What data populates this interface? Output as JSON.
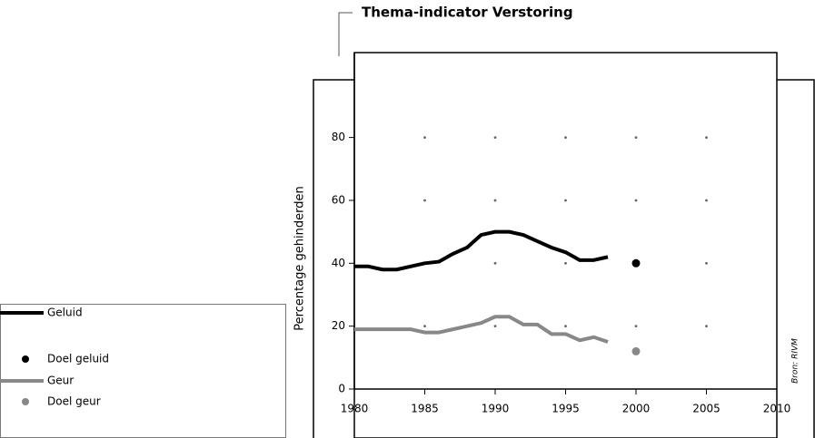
{
  "chart_data": {
    "type": "line",
    "title": "Thema-indicator Verstoring",
    "y_label": "Percentage gehinderden",
    "source": "Bron: RIVM",
    "xlim": [
      1980,
      2010
    ],
    "xticks": [
      1980,
      1985,
      1990,
      1995,
      2000,
      2005,
      2010
    ],
    "ylim": [
      0,
      107
    ],
    "yticks": [
      0,
      20,
      40,
      60,
      80
    ],
    "grid": "dots",
    "grid_color": "#666",
    "series": [
      {
        "name": "Geluid",
        "color": "#000000",
        "style": "line",
        "x": [
          1980,
          1981,
          1982,
          1983,
          1984,
          1985,
          1986,
          1987,
          1988,
          1989,
          1990,
          1991,
          1992,
          1993,
          1994,
          1995,
          1996,
          1997,
          1998
        ],
        "values": [
          39,
          39,
          38,
          38,
          39,
          40,
          40.5,
          43,
          45,
          49,
          50,
          50,
          49,
          47,
          45,
          43.5,
          41,
          41,
          42
        ]
      },
      {
        "name": "Doel geluid",
        "color": "#000000",
        "style": "point",
        "x": [
          2000
        ],
        "values": [
          40
        ]
      },
      {
        "name": "Geur",
        "color": "#888888",
        "style": "line",
        "x": [
          1980,
          1981,
          1982,
          1983,
          1984,
          1985,
          1986,
          1987,
          1988,
          1989,
          1990,
          1991,
          1992,
          1993,
          1994,
          1995,
          1996,
          1997,
          1998
        ],
        "values": [
          19,
          19,
          19,
          19,
          19,
          18,
          18,
          19,
          20,
          21,
          23,
          23,
          20.5,
          20.5,
          17.5,
          17.5,
          15.5,
          16.5,
          15
        ]
      },
      {
        "name": "Doel geur",
        "color": "#888888",
        "style": "point",
        "x": [
          2000
        ],
        "values": [
          12
        ]
      }
    ]
  }
}
